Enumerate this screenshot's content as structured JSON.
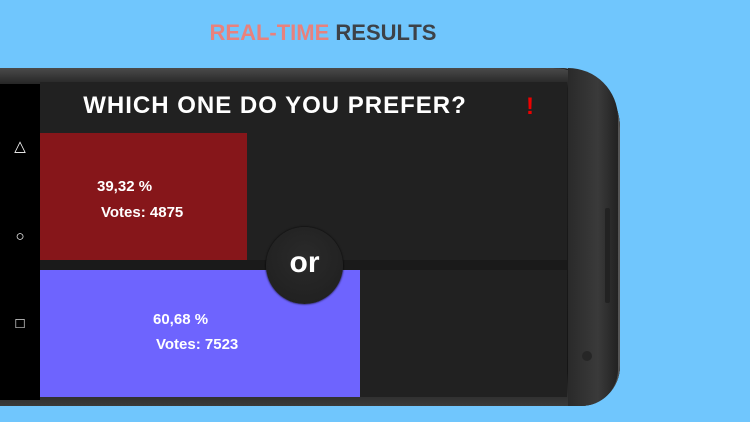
{
  "banner": {
    "highlight": "REAL-TIME",
    "rest": "RESULTS",
    "colors": {
      "highlight": "#e8817d",
      "rest": "#3d4248",
      "background": "#70c6fd"
    }
  },
  "app": {
    "question": "WHICH ONE DO YOU PREFER?",
    "report_icon": "exclamation-icon",
    "report_label": "!",
    "options": [
      {
        "percent_label": "39,32 %",
        "votes_label": "Votes: 4875",
        "percent": 39.32,
        "votes": 4875,
        "color": "#86161a"
      },
      {
        "percent_label": "60,68 %",
        "votes_label": "Votes: 7523",
        "percent": 60.68,
        "votes": 7523,
        "color": "#6e64fe"
      }
    ],
    "or_label": "or"
  },
  "navbar": {
    "icons": [
      "back-triangle-icon",
      "home-circle-icon",
      "recents-square-icon"
    ],
    "glyphs": [
      "△",
      "○",
      "□"
    ]
  }
}
